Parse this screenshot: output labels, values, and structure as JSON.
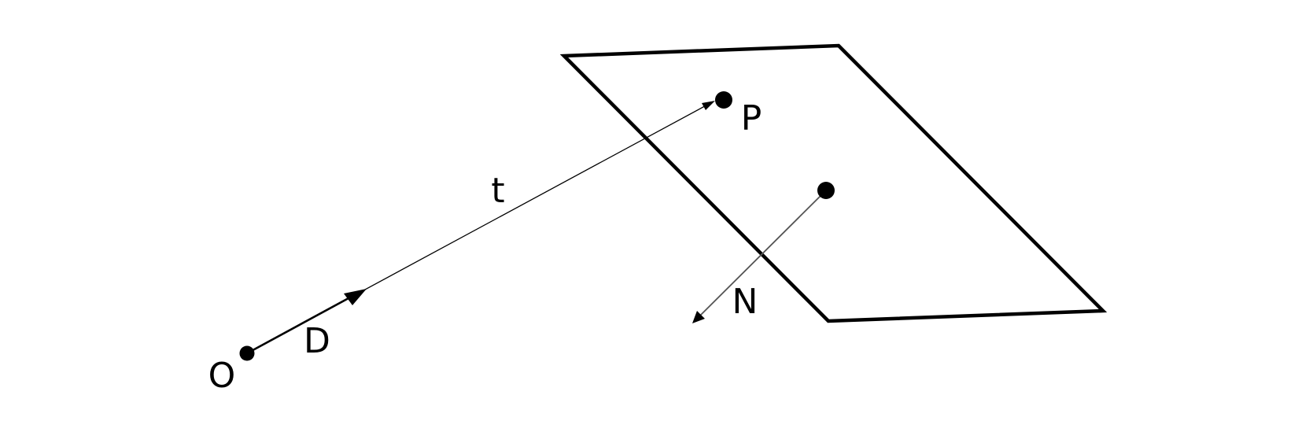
{
  "labels": {
    "origin": "O",
    "direction": "D",
    "distance": "t",
    "intersection": "P",
    "normal": "N"
  },
  "colors": {
    "stroke": "#000000",
    "normal_stroke": "#666666",
    "background": "#ffffff"
  }
}
